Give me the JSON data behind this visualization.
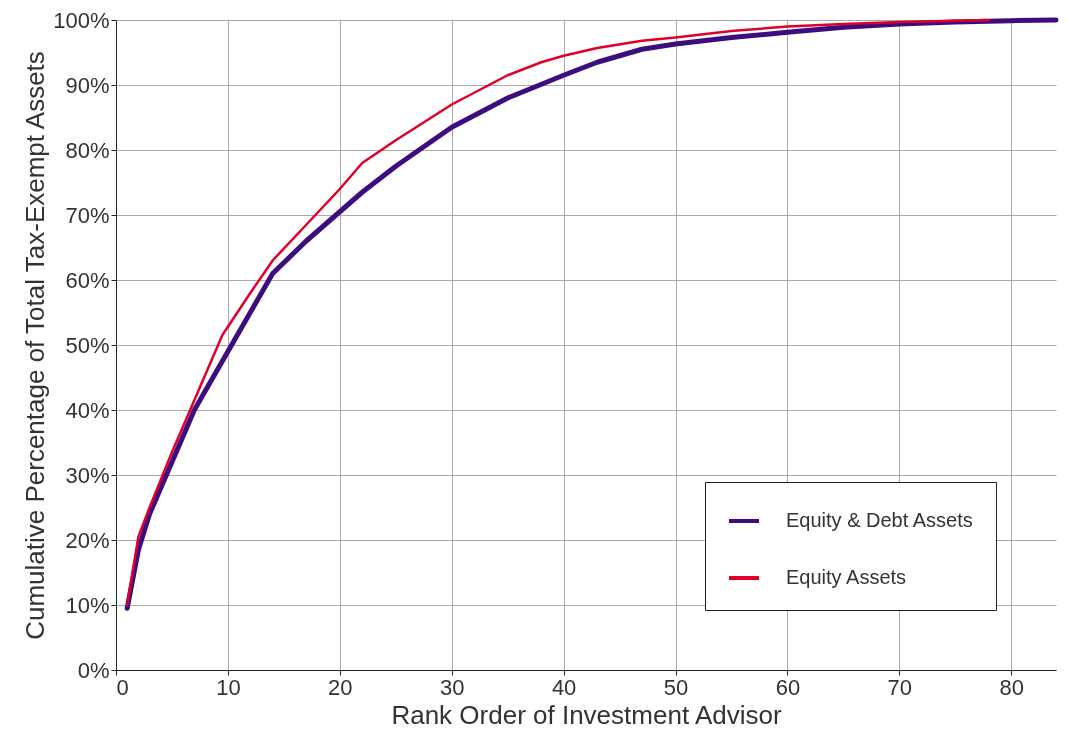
{
  "chart_data": {
    "type": "line",
    "xlabel": "Rank Order of Investment Advisor",
    "ylabel": "Cumulative Percentage of Total Tax-Exempt Assets",
    "xlim": [
      0,
      84
    ],
    "xticks": [
      0,
      10,
      20,
      30,
      40,
      50,
      60,
      70,
      80
    ],
    "ylim": [
      0,
      100
    ],
    "yticks": [
      {
        "value": 0,
        "label": "0%"
      },
      {
        "value": 10,
        "label": "10%"
      },
      {
        "value": 20,
        "label": "20%"
      },
      {
        "value": 30,
        "label": "30%"
      },
      {
        "value": 40,
        "label": "40%"
      },
      {
        "value": 50,
        "label": "50%"
      },
      {
        "value": 60,
        "label": "60%"
      },
      {
        "value": 70,
        "label": "70%"
      },
      {
        "value": 80,
        "label": "80%"
      },
      {
        "value": 90,
        "label": "90%"
      },
      {
        "value": 100,
        "label": "100%"
      }
    ],
    "grid": true,
    "legend": "bottom right",
    "marker": "none",
    "line_style": "solid",
    "series": [
      {
        "name": "Equity & Debt Assets",
        "color": "#3d0c7f",
        "x": [
          1,
          2,
          3,
          5,
          7,
          10,
          12,
          14,
          17,
          20,
          22,
          25,
          30,
          35,
          40,
          43,
          47,
          50,
          55,
          60,
          65,
          70,
          75,
          80,
          84
        ],
        "values": [
          9.5,
          18.5,
          24,
          32,
          40,
          49,
          55,
          61,
          66,
          70.5,
          73.5,
          77.5,
          83.5,
          88,
          91.5,
          93.5,
          95.5,
          96.3,
          97.3,
          98.1,
          98.9,
          99.4,
          99.7,
          99.9,
          100
        ]
      },
      {
        "name": "Equity Assets",
        "color": "#e0002a",
        "x": [
          1,
          2,
          3,
          5,
          7,
          9.5,
          12,
          14,
          17,
          20,
          22,
          25,
          30,
          35,
          38,
          40,
          43,
          47,
          50,
          55,
          60,
          65,
          70,
          78
        ],
        "values": [
          10,
          20.5,
          25,
          33.5,
          41.5,
          51.5,
          58,
          63,
          68.5,
          74,
          78,
          81.5,
          87,
          91.5,
          93.5,
          94.5,
          95.7,
          96.8,
          97.3,
          98.3,
          99,
          99.4,
          99.7,
          100
        ]
      }
    ]
  }
}
